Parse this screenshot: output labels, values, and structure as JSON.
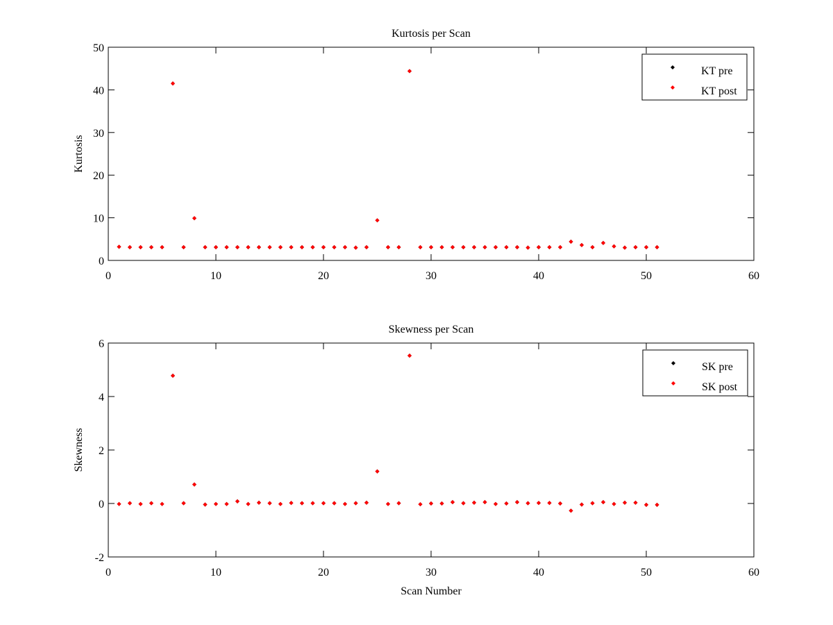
{
  "chart_data": [
    {
      "type": "scatter",
      "title": "Kurtosis per Scan",
      "xlabel": "",
      "ylabel": "Kurtosis",
      "xlim": [
        0,
        60
      ],
      "ylim": [
        0,
        50
      ],
      "xticks": [
        0,
        10,
        20,
        30,
        40,
        50,
        60
      ],
      "yticks": [
        0,
        10,
        20,
        30,
        40,
        50
      ],
      "grid": false,
      "legend_position": "top-right",
      "series": [
        {
          "name": "KT pre",
          "color": "#000000",
          "marker": "diamond",
          "x": [
            1,
            2,
            3,
            4,
            5,
            6,
            7,
            8,
            9,
            10,
            11,
            12,
            13,
            14,
            15,
            16,
            17,
            18,
            19,
            20,
            21,
            22,
            23,
            24,
            25,
            26,
            27,
            28,
            29,
            30,
            31,
            32,
            33,
            34,
            35,
            36,
            37,
            38,
            39,
            40,
            41,
            42,
            43,
            44,
            45,
            46,
            47,
            48,
            49,
            50,
            51
          ],
          "y": [
            3.2,
            3.1,
            3.1,
            3.1,
            3.1,
            41.5,
            3.1,
            9.9,
            3.1,
            3.1,
            3.1,
            3.1,
            3.1,
            3.1,
            3.1,
            3.1,
            3.1,
            3.1,
            3.1,
            3.1,
            3.1,
            3.1,
            3.0,
            3.1,
            9.4,
            3.1,
            3.1,
            44.4,
            3.1,
            3.1,
            3.1,
            3.1,
            3.1,
            3.1,
            3.1,
            3.1,
            3.1,
            3.1,
            3.0,
            3.1,
            3.1,
            3.1,
            4.4,
            3.6,
            3.1,
            4.1,
            3.3,
            3.0,
            3.1,
            3.1,
            3.1
          ]
        },
        {
          "name": "KT post",
          "color": "#ff0000",
          "marker": "diamond",
          "x": [
            1,
            2,
            3,
            4,
            5,
            6,
            7,
            8,
            9,
            10,
            11,
            12,
            13,
            14,
            15,
            16,
            17,
            18,
            19,
            20,
            21,
            22,
            23,
            24,
            25,
            26,
            27,
            28,
            29,
            30,
            31,
            32,
            33,
            34,
            35,
            36,
            37,
            38,
            39,
            40,
            41,
            42,
            43,
            44,
            45,
            46,
            47,
            48,
            49,
            50,
            51
          ],
          "y": [
            3.2,
            3.1,
            3.1,
            3.1,
            3.1,
            41.5,
            3.1,
            9.9,
            3.1,
            3.1,
            3.1,
            3.1,
            3.1,
            3.1,
            3.1,
            3.1,
            3.1,
            3.1,
            3.1,
            3.1,
            3.1,
            3.1,
            3.0,
            3.1,
            9.4,
            3.1,
            3.1,
            44.4,
            3.1,
            3.1,
            3.1,
            3.1,
            3.1,
            3.1,
            3.1,
            3.1,
            3.1,
            3.1,
            3.0,
            3.1,
            3.1,
            3.1,
            4.4,
            3.6,
            3.1,
            4.1,
            3.3,
            3.0,
            3.1,
            3.1,
            3.1
          ]
        }
      ]
    },
    {
      "type": "scatter",
      "title": "Skewness per Scan",
      "xlabel": "Scan Number",
      "ylabel": "Skewness",
      "xlim": [
        0,
        60
      ],
      "ylim": [
        -2,
        6
      ],
      "xticks": [
        0,
        10,
        20,
        30,
        40,
        50,
        60
      ],
      "yticks": [
        -2,
        0,
        2,
        4,
        6
      ],
      "grid": false,
      "legend_position": "top-right",
      "series": [
        {
          "name": "SK pre",
          "color": "#000000",
          "marker": "diamond",
          "x": [
            1,
            2,
            3,
            4,
            5,
            6,
            7,
            8,
            9,
            10,
            11,
            12,
            13,
            14,
            15,
            16,
            17,
            18,
            19,
            20,
            21,
            22,
            23,
            24,
            25,
            26,
            27,
            28,
            29,
            30,
            31,
            32,
            33,
            34,
            35,
            36,
            37,
            38,
            39,
            40,
            41,
            42,
            43,
            44,
            45,
            46,
            47,
            48,
            49,
            50,
            51
          ],
          "y": [
            -0.02,
            0.01,
            -0.02,
            0.01,
            -0.02,
            4.78,
            0.01,
            0.71,
            -0.04,
            -0.02,
            -0.02,
            0.08,
            -0.02,
            0.03,
            0.01,
            -0.02,
            0.02,
            0.01,
            0.01,
            0.01,
            0.01,
            -0.02,
            0.01,
            0.03,
            1.2,
            -0.02,
            0.01,
            5.53,
            -0.03,
            0.0,
            0.0,
            0.05,
            0.01,
            0.03,
            0.05,
            -0.02,
            0.0,
            0.05,
            0.01,
            0.02,
            0.02,
            0.0,
            -0.27,
            -0.04,
            0.01,
            0.05,
            -0.02,
            0.03,
            0.03,
            -0.05,
            -0.05
          ]
        },
        {
          "name": "SK post",
          "color": "#ff0000",
          "marker": "diamond",
          "x": [
            1,
            2,
            3,
            4,
            5,
            6,
            7,
            8,
            9,
            10,
            11,
            12,
            13,
            14,
            15,
            16,
            17,
            18,
            19,
            20,
            21,
            22,
            23,
            24,
            25,
            26,
            27,
            28,
            29,
            30,
            31,
            32,
            33,
            34,
            35,
            36,
            37,
            38,
            39,
            40,
            41,
            42,
            43,
            44,
            45,
            46,
            47,
            48,
            49,
            50,
            51
          ],
          "y": [
            -0.02,
            0.01,
            -0.02,
            0.01,
            -0.02,
            4.78,
            0.01,
            0.71,
            -0.04,
            -0.02,
            -0.02,
            0.08,
            -0.02,
            0.03,
            0.01,
            -0.02,
            0.02,
            0.01,
            0.01,
            0.01,
            0.01,
            -0.02,
            0.01,
            0.03,
            1.2,
            -0.02,
            0.01,
            5.53,
            -0.03,
            0.0,
            0.0,
            0.05,
            0.01,
            0.03,
            0.05,
            -0.02,
            0.0,
            0.05,
            0.01,
            0.02,
            0.02,
            0.0,
            -0.27,
            -0.04,
            0.01,
            0.05,
            -0.02,
            0.03,
            0.03,
            -0.05,
            -0.05
          ]
        }
      ]
    }
  ]
}
